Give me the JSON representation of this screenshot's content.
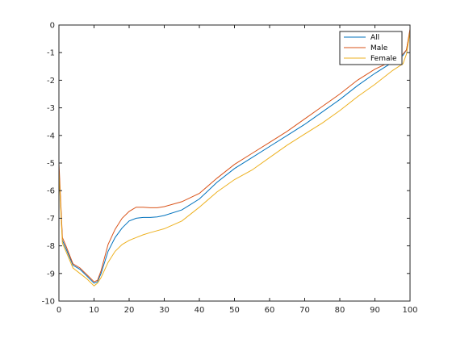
{
  "chart_data": {
    "type": "line",
    "title": "",
    "xlabel": "",
    "ylabel": "",
    "xlim": [
      0,
      100
    ],
    "ylim": [
      -10,
      0
    ],
    "xticks": [
      0,
      10,
      20,
      30,
      40,
      50,
      60,
      70,
      80,
      90,
      100
    ],
    "yticks": [
      -10,
      -9,
      -8,
      -7,
      -6,
      -5,
      -4,
      -3,
      -2,
      -1,
      0
    ],
    "grid": false,
    "legend_position": "top-right",
    "series": [
      {
        "name": "All",
        "color": "#0072BD",
        "x": [
          0,
          1,
          2,
          4,
          6,
          8,
          10,
          11,
          12,
          14,
          16,
          18,
          20,
          22,
          24,
          26,
          28,
          30,
          35,
          40,
          45,
          50,
          55,
          60,
          65,
          70,
          75,
          80,
          85,
          90,
          95,
          98,
          99,
          100
        ],
        "y": [
          -5.2,
          -7.8,
          -8.1,
          -8.7,
          -8.85,
          -9.1,
          -9.35,
          -9.3,
          -9.0,
          -8.2,
          -7.7,
          -7.35,
          -7.1,
          -7.0,
          -6.97,
          -6.97,
          -6.95,
          -6.9,
          -6.7,
          -6.3,
          -5.7,
          -5.2,
          -4.8,
          -4.4,
          -4.0,
          -3.6,
          -3.15,
          -2.7,
          -2.2,
          -1.75,
          -1.35,
          -1.1,
          -0.9,
          -0.2
        ]
      },
      {
        "name": "Male",
        "color": "#D95319",
        "x": [
          0,
          1,
          2,
          4,
          6,
          8,
          10,
          11,
          12,
          14,
          16,
          18,
          20,
          22,
          24,
          26,
          28,
          30,
          35,
          40,
          45,
          50,
          55,
          60,
          65,
          70,
          75,
          80,
          85,
          90,
          95,
          98,
          99,
          100
        ],
        "y": [
          -5.0,
          -7.7,
          -8.0,
          -8.65,
          -8.8,
          -9.05,
          -9.3,
          -9.25,
          -8.9,
          -7.95,
          -7.4,
          -7.0,
          -6.75,
          -6.6,
          -6.6,
          -6.62,
          -6.62,
          -6.58,
          -6.4,
          -6.1,
          -5.55,
          -5.05,
          -4.65,
          -4.25,
          -3.85,
          -3.4,
          -2.95,
          -2.5,
          -2.0,
          -1.6,
          -1.3,
          -1.05,
          -0.9,
          -0.15
        ]
      },
      {
        "name": "Female",
        "color": "#EDB120",
        "x": [
          0,
          1,
          2,
          4,
          6,
          8,
          10,
          11,
          12,
          14,
          16,
          18,
          20,
          22,
          24,
          26,
          28,
          30,
          35,
          40,
          45,
          50,
          55,
          60,
          65,
          70,
          75,
          80,
          85,
          90,
          95,
          98,
          99,
          100
        ],
        "y": [
          -5.3,
          -7.9,
          -8.2,
          -8.8,
          -9.0,
          -9.2,
          -9.45,
          -9.35,
          -9.15,
          -8.6,
          -8.2,
          -7.95,
          -7.8,
          -7.7,
          -7.6,
          -7.52,
          -7.45,
          -7.38,
          -7.1,
          -6.6,
          -6.05,
          -5.6,
          -5.25,
          -4.8,
          -4.35,
          -3.95,
          -3.55,
          -3.1,
          -2.6,
          -2.15,
          -1.65,
          -1.4,
          -1.05,
          -0.25
        ]
      }
    ]
  }
}
